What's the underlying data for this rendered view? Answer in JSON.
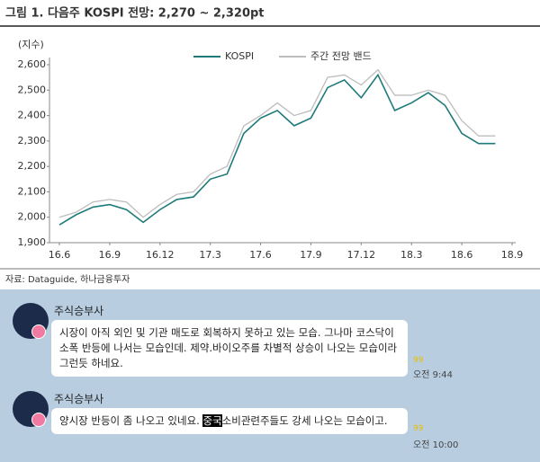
{
  "chart_data": {
    "type": "line",
    "title": "그림 1. 다음주 KOSPI 전망: 2,270 ~ 2,320pt",
    "ylabel": "(지수)",
    "categories": [
      "16.6",
      null,
      null,
      "16.9",
      null,
      null,
      "16.12",
      null,
      null,
      "17.3",
      null,
      null,
      "17.6",
      null,
      null,
      "17.9",
      null,
      null,
      "17.12",
      null,
      null,
      "18.3",
      null,
      null,
      "18.6",
      null,
      null,
      "18.9"
    ],
    "series": [
      {
        "name": "KOSPI",
        "color": "#1f7a7a",
        "values": [
          1970,
          2010,
          2040,
          2050,
          2030,
          1980,
          2030,
          2070,
          2080,
          2150,
          2170,
          2330,
          2390,
          2420,
          2360,
          2390,
          2510,
          2540,
          2470,
          2560,
          2420,
          2450,
          2490,
          2440,
          2330,
          2290,
          2290,
          null
        ]
      },
      {
        "name": "주간 전망 밴드",
        "color": "#bdbdbd",
        "values": [
          2000,
          2020,
          2060,
          2070,
          2060,
          2000,
          2050,
          2090,
          2100,
          2170,
          2200,
          2360,
          2400,
          2450,
          2400,
          2420,
          2550,
          2560,
          2520,
          2580,
          2480,
          2480,
          2500,
          2480,
          2380,
          2320,
          2320,
          null
        ]
      }
    ],
    "ylim": [
      1900,
      2600
    ],
    "yticks": [
      {
        "value": 1900,
        "label": "1,900"
      },
      {
        "value": 2000,
        "label": "2,000"
      },
      {
        "value": 2100,
        "label": "2,100"
      },
      {
        "value": 2200,
        "label": "2,200"
      },
      {
        "value": 2300,
        "label": "2,300"
      },
      {
        "value": 2400,
        "label": "2,400"
      },
      {
        "value": 2500,
        "label": "2,500"
      },
      {
        "value": 2600,
        "label": "2,600"
      }
    ],
    "source": "자료: Dataguide, 하나금융투자"
  },
  "chat": {
    "messages": [
      {
        "sender": "주식승부사",
        "text": "시장이 아직 외인 및 기관 매도로 회복하지 못하고 있는 모습. 그나마 코스닥이 소폭 반등에 나서는 모습인데. 제약.바이오주를 차별적 상승이 나오는 모습이라 그런듯 하네요.",
        "unread": "99",
        "time": "오전 9:44"
      },
      {
        "sender": "주식승부사",
        "text_before": "양시장 반등이 좀 나오고 있네요. ",
        "highlight": "중국",
        "text_after": "소비관련주들도 강세 나오는 모습이고.",
        "unread": "99",
        "time": "오전 10:00"
      }
    ]
  }
}
